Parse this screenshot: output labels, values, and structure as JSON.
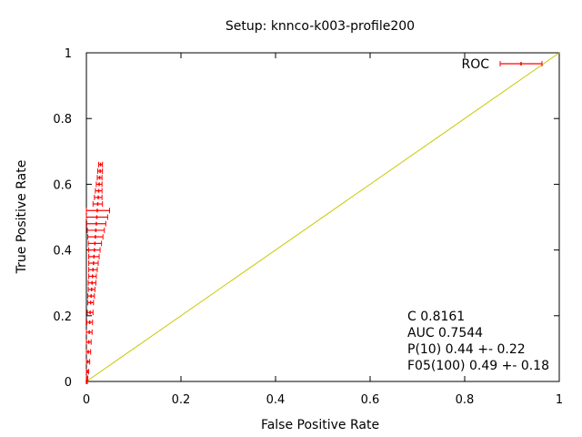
{
  "chart_data": {
    "type": "line",
    "title": "Setup: knnco-k003-profile200",
    "xlabel": "False Positive Rate",
    "ylabel": "True Positive Rate",
    "xlim": [
      0,
      1
    ],
    "ylim": [
      0,
      1
    ],
    "x_ticks": [
      "0",
      "0.2",
      "0.4",
      "0.6",
      "0.8",
      "1"
    ],
    "y_ticks": [
      "0",
      "0.2",
      "0.4",
      "0.6",
      "0.8",
      "1"
    ],
    "grid": false,
    "legend": {
      "position": "top-right",
      "entries": [
        "ROC"
      ]
    },
    "series": [
      {
        "name": "ROC",
        "color": "#ff0000",
        "style": "errorbars",
        "points": [
          {
            "x": 0.0,
            "y": 0.0,
            "xerr": 0.002
          },
          {
            "x": 0.001,
            "y": 0.01,
            "xerr": 0.002
          },
          {
            "x": 0.002,
            "y": 0.03,
            "xerr": 0.003
          },
          {
            "x": 0.003,
            "y": 0.06,
            "xerr": 0.004
          },
          {
            "x": 0.004,
            "y": 0.09,
            "xerr": 0.005
          },
          {
            "x": 0.005,
            "y": 0.12,
            "xerr": 0.005
          },
          {
            "x": 0.006,
            "y": 0.15,
            "xerr": 0.006
          },
          {
            "x": 0.007,
            "y": 0.18,
            "xerr": 0.006
          },
          {
            "x": 0.008,
            "y": 0.21,
            "xerr": 0.006
          },
          {
            "x": 0.009,
            "y": 0.24,
            "xerr": 0.006
          },
          {
            "x": 0.01,
            "y": 0.26,
            "xerr": 0.007
          },
          {
            "x": 0.011,
            "y": 0.28,
            "xerr": 0.007
          },
          {
            "x": 0.012,
            "y": 0.3,
            "xerr": 0.008
          },
          {
            "x": 0.013,
            "y": 0.32,
            "xerr": 0.008
          },
          {
            "x": 0.014,
            "y": 0.34,
            "xerr": 0.009
          },
          {
            "x": 0.015,
            "y": 0.36,
            "xerr": 0.01
          },
          {
            "x": 0.016,
            "y": 0.38,
            "xerr": 0.011
          },
          {
            "x": 0.017,
            "y": 0.4,
            "xerr": 0.012
          },
          {
            "x": 0.018,
            "y": 0.42,
            "xerr": 0.014
          },
          {
            "x": 0.019,
            "y": 0.44,
            "xerr": 0.016
          },
          {
            "x": 0.02,
            "y": 0.46,
            "xerr": 0.018
          },
          {
            "x": 0.021,
            "y": 0.48,
            "xerr": 0.02
          },
          {
            "x": 0.022,
            "y": 0.5,
            "xerr": 0.023
          },
          {
            "x": 0.023,
            "y": 0.52,
            "xerr": 0.026
          },
          {
            "x": 0.024,
            "y": 0.54,
            "xerr": 0.01
          },
          {
            "x": 0.025,
            "y": 0.56,
            "xerr": 0.008
          },
          {
            "x": 0.026,
            "y": 0.58,
            "xerr": 0.007
          },
          {
            "x": 0.027,
            "y": 0.6,
            "xerr": 0.006
          },
          {
            "x": 0.028,
            "y": 0.62,
            "xerr": 0.005
          },
          {
            "x": 0.029,
            "y": 0.64,
            "xerr": 0.005
          },
          {
            "x": 0.03,
            "y": 0.66,
            "xerr": 0.004
          }
        ]
      },
      {
        "name": "",
        "color": "#c8c800",
        "style": "line",
        "points": [
          {
            "x": 0,
            "y": 0
          },
          {
            "x": 1,
            "y": 1
          }
        ]
      }
    ],
    "annotations": [
      "C 0.8161",
      "AUC 0.7544",
      "P(10) 0.44 +- 0.22",
      "F05(100) 0.49 +- 0.18"
    ]
  }
}
